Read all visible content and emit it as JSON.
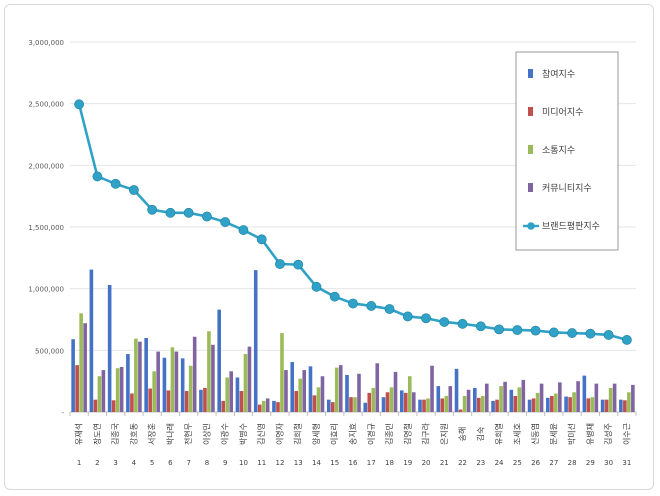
{
  "chart_data": {
    "type": "bar",
    "title": "",
    "xlabel": "",
    "ylabel": "",
    "ylim": [
      0,
      3000000
    ],
    "yticks": [
      0,
      500000,
      1000000,
      1500000,
      2000000,
      2500000,
      3000000
    ],
    "ytick_labels": [
      "-",
      "500,000",
      "1,000,000",
      "1,500,000",
      "2,000,000",
      "2,500,000",
      "3,000,000"
    ],
    "categories": [
      "유재석",
      "장도연",
      "김종국",
      "강호동",
      "서장훈",
      "박나래",
      "전현무",
      "이상민",
      "이광수",
      "박명수",
      "김신영",
      "이영자",
      "김희철",
      "양세형",
      "이효리",
      "송지효",
      "이경규",
      "김종민",
      "김영철",
      "김구라",
      "은지원",
      "송해",
      "김숙",
      "유희열",
      "조세호",
      "신동엽",
      "문세윤",
      "박미선",
      "유병재",
      "김성주",
      "이수근"
    ],
    "ranks": [
      "1",
      "2",
      "3",
      "4",
      "5",
      "6",
      "7",
      "8",
      "9",
      "10",
      "11",
      "12",
      "13",
      "14",
      "15",
      "16",
      "17",
      "18",
      "19",
      "20",
      "21",
      "22",
      "23",
      "24",
      "25",
      "26",
      "27",
      "28",
      "29",
      "30",
      "31"
    ],
    "series": [
      {
        "name": "참여지수",
        "color": "#4472C4",
        "kind": "bar",
        "values": [
          590000,
          1155000,
          1030000,
          470000,
          600000,
          440000,
          435000,
          180000,
          830000,
          280000,
          1150000,
          90000,
          405000,
          370000,
          100000,
          300000,
          75000,
          120000,
          175000,
          100000,
          210000,
          350000,
          195000,
          90000,
          180000,
          100000,
          115000,
          125000,
          295000,
          100000,
          100000
        ]
      },
      {
        "name": "미디어지수",
        "color": "#C0504D",
        "kind": "bar",
        "values": [
          380000,
          100000,
          95000,
          150000,
          190000,
          175000,
          170000,
          195000,
          90000,
          170000,
          60000,
          80000,
          170000,
          135000,
          80000,
          120000,
          155000,
          160000,
          155000,
          100000,
          110000,
          20000,
          115000,
          100000,
          130000,
          110000,
          130000,
          120000,
          110000,
          100000,
          95000
        ]
      },
      {
        "name": "소통지수",
        "color": "#9BBB59",
        "kind": "bar",
        "values": [
          800000,
          290000,
          355000,
          595000,
          330000,
          525000,
          375000,
          655000,
          280000,
          470000,
          90000,
          640000,
          270000,
          200000,
          360000,
          120000,
          195000,
          200000,
          290000,
          110000,
          130000,
          130000,
          130000,
          210000,
          200000,
          155000,
          150000,
          160000,
          120000,
          195000,
          160000
        ]
      },
      {
        "name": "커뮤니티지수",
        "color": "#8064A2",
        "kind": "bar",
        "values": [
          720000,
          340000,
          365000,
          570000,
          490000,
          490000,
          610000,
          545000,
          330000,
          530000,
          110000,
          340000,
          340000,
          290000,
          380000,
          310000,
          395000,
          325000,
          160000,
          375000,
          210000,
          180000,
          230000,
          245000,
          260000,
          230000,
          240000,
          250000,
          230000,
          230000,
          220000
        ]
      },
      {
        "name": "브랜드평판지수",
        "color": "#31A2C7",
        "kind": "line",
        "values": [
          2495000,
          1910000,
          1850000,
          1800000,
          1640000,
          1615000,
          1615000,
          1585000,
          1540000,
          1475000,
          1400000,
          1200000,
          1195000,
          1015000,
          935000,
          880000,
          860000,
          835000,
          775000,
          760000,
          730000,
          715000,
          695000,
          670000,
          665000,
          660000,
          645000,
          640000,
          635000,
          625000,
          585000
        ]
      }
    ],
    "legend_position": "top-right",
    "grid": true
  }
}
